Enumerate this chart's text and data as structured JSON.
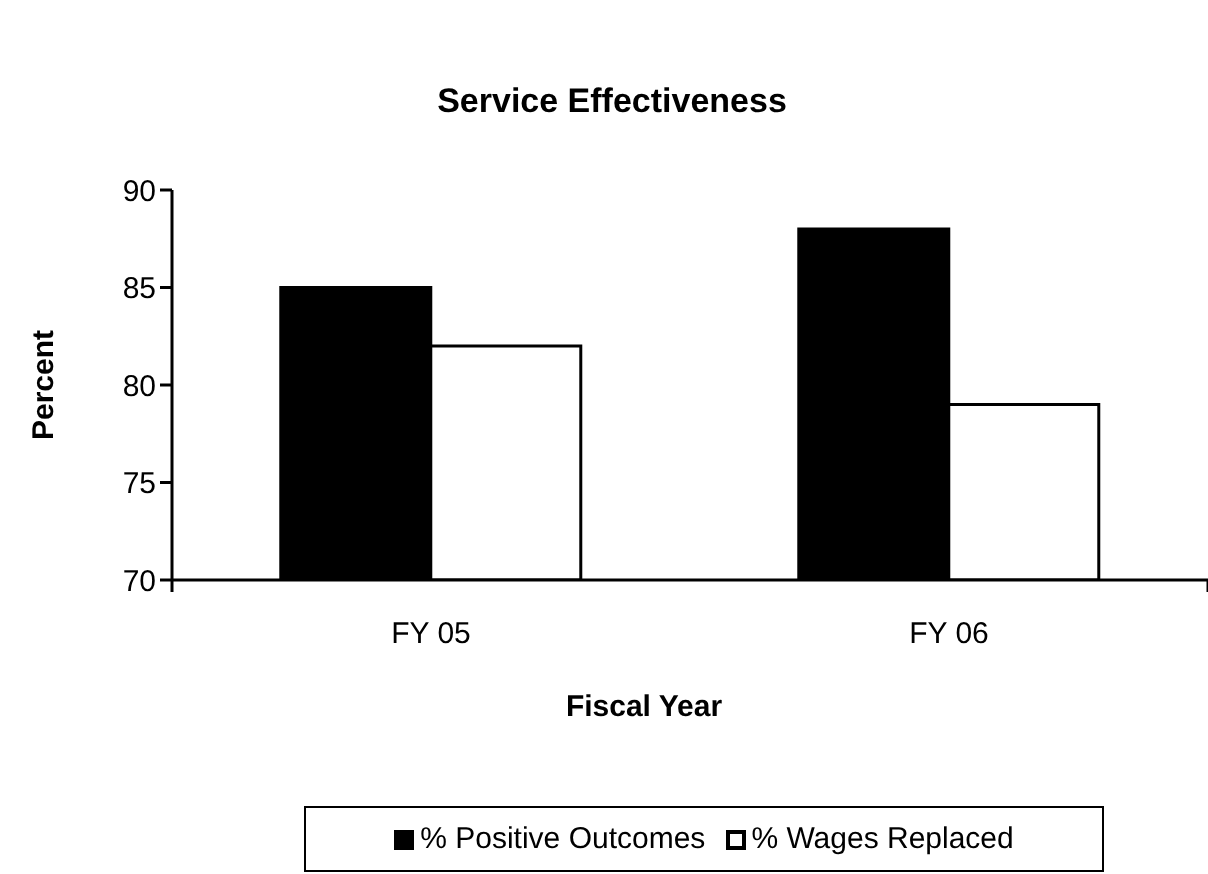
{
  "chart_data": {
    "type": "bar",
    "title": "Service Effectiveness",
    "xlabel": "Fiscal Year",
    "ylabel": "Percent",
    "categories": [
      "FY 05",
      "FY 06"
    ],
    "series": [
      {
        "name": "% Positive Outcomes",
        "color": "#000000",
        "values": [
          85,
          88
        ]
      },
      {
        "name": "% Wages Replaced",
        "color": "#ffffff",
        "values": [
          82,
          79
        ]
      }
    ],
    "ylim": [
      70,
      90
    ],
    "yticks": [
      70,
      75,
      80,
      85,
      90
    ],
    "legend": "bottom"
  }
}
